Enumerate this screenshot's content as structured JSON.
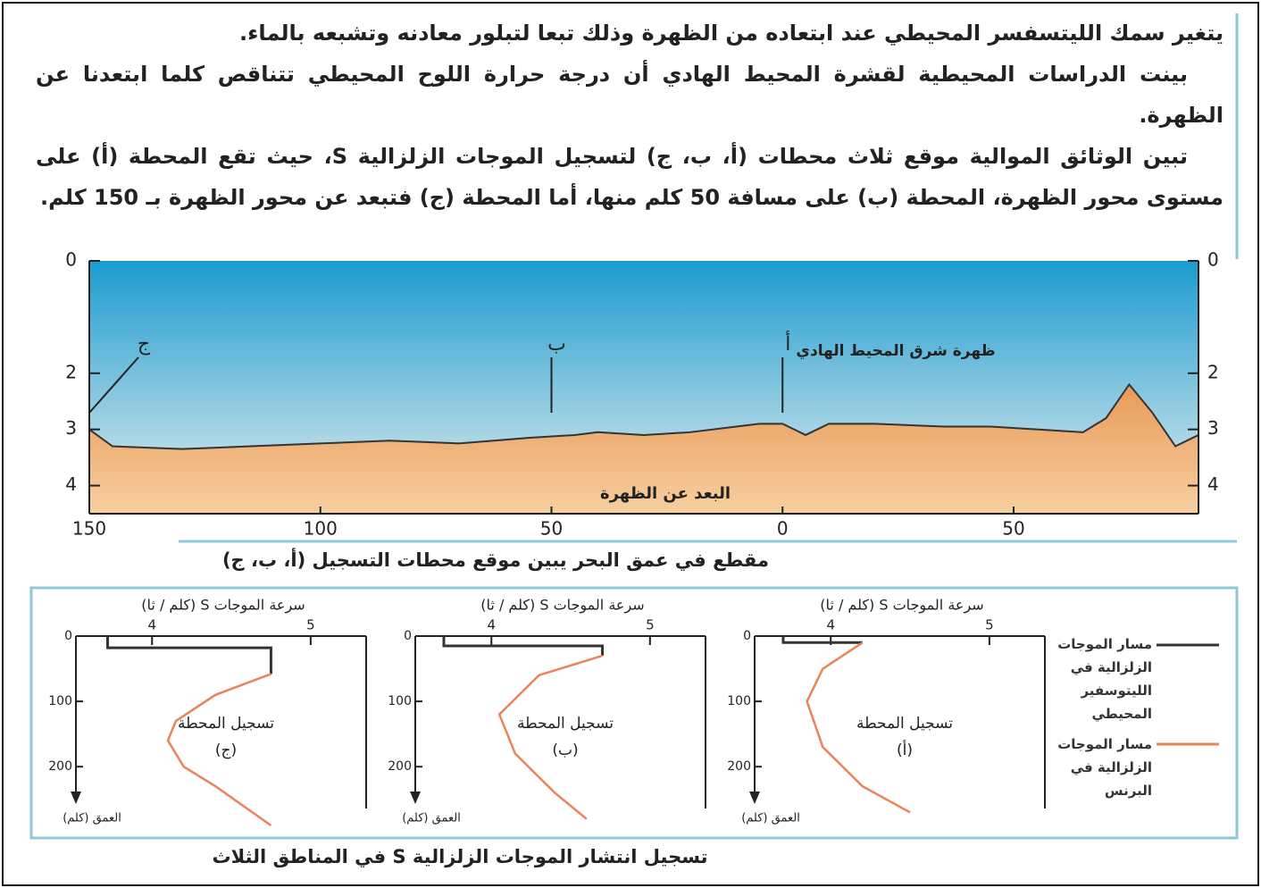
{
  "text": {
    "paragraphs": [
      "يتغير سمك الليتسفسر المحيطي عند ابتعاده من الظهرة وذلك تبعا لتبلور معادنه وتشبعه بالماء.",
      "بينت الدراسات المحيطية لقشرة المحيط الهادي أن درجة حرارة اللوح المحيطي تتناقص كلما ابتعدنا عن الظهرة.",
      "تبين الوثائق الموالية موقع ثلاث محطات (أ، ب، ج) لتسجيل الموجات الزلزالية S، حيث تقع المحطة (أ) على مستوى محور الظهرة، المحطة (ب) على مسافة 50 كلم منها، أما المحطة (ج) فتبعد عن محور الظهرة بـ 150 كلم."
    ]
  },
  "section": {
    "xlim": [
      -150,
      90
    ],
    "ylim": [
      0,
      4.5
    ],
    "xticks": [
      {
        "value": -150,
        "label": "150"
      },
      {
        "value": -100,
        "label": "100"
      },
      {
        "value": -50,
        "label": "50"
      },
      0,
      50
    ],
    "yticks": [
      0,
      2,
      3,
      4
    ],
    "y2ticks": [
      0,
      2,
      3,
      4
    ],
    "profile": {
      "x": [
        -150,
        -145,
        -130,
        -115,
        -100,
        -85,
        -70,
        -55,
        -45,
        -40,
        -30,
        -20,
        -10,
        -5,
        0,
        5,
        10,
        20,
        35,
        45,
        55,
        65,
        70,
        75,
        80,
        85,
        90
      ],
      "y": [
        3.0,
        3.3,
        3.35,
        3.3,
        3.25,
        3.2,
        3.25,
        3.15,
        3.1,
        3.05,
        3.1,
        3.05,
        2.95,
        2.9,
        2.9,
        3.1,
        2.9,
        2.9,
        2.95,
        2.95,
        3.0,
        3.05,
        2.8,
        2.2,
        2.7,
        3.3,
        3.1
      ]
    },
    "stations": [
      {
        "label": "ج",
        "x": -150
      },
      {
        "label": "ب",
        "x": -50
      },
      {
        "label": "أ",
        "x": 0
      }
    ],
    "ridge_label": "ظهرة شرق المحيط الهادي",
    "x_label": "البعد عن الظهرة",
    "caption": "مقطع في عمق البحر يبين موقع محطات التسجيل (أ، ب، ج)"
  },
  "panels": {
    "x_label": "سرعة الموجات S (كلم / ثا)",
    "y_label": "العمق (كلم)",
    "xlim": [
      3.52,
      5.35
    ],
    "ylim": [
      0,
      290
    ],
    "xticks": [
      4,
      5
    ],
    "yticks": [
      0,
      100,
      200
    ],
    "items": [
      {
        "label": "تسجيل المحطة",
        "station": "(ج)",
        "lithosphere": {
          "x": [
            3.72,
            3.72,
            4.75,
            4.75
          ],
          "y": [
            0,
            18,
            18,
            58
          ]
        },
        "mantle": {
          "x": [
            4.75,
            4.4,
            4.15,
            4.1,
            4.2,
            4.4,
            4.75
          ],
          "y": [
            58,
            90,
            130,
            160,
            200,
            230,
            290
          ]
        }
      },
      {
        "label": "تسجيل المحطة",
        "station": "(ب)",
        "lithosphere": {
          "x": [
            3.7,
            3.7,
            4.7,
            4.7
          ],
          "y": [
            0,
            15,
            15,
            30
          ]
        },
        "mantle": {
          "x": [
            4.7,
            4.3,
            4.05,
            4.15,
            4.4,
            4.6
          ],
          "y": [
            30,
            60,
            120,
            180,
            240,
            280
          ]
        }
      },
      {
        "label": "تسجيل المحطة",
        "station": "(أ)",
        "lithosphere": {
          "x": [
            3.7,
            3.7,
            4.2
          ],
          "y": [
            0,
            10,
            10
          ]
        },
        "mantle": {
          "x": [
            4.2,
            3.95,
            3.85,
            3.95,
            4.2,
            4.5
          ],
          "y": [
            10,
            50,
            100,
            170,
            230,
            270
          ]
        }
      }
    ]
  },
  "legend": [
    {
      "label": "مسار الموجات الزلزالية في الليتوسفير المحيطي",
      "color": "#333333"
    },
    {
      "label": "مسار الموجات الزلزالية في البرنس",
      "color": "#e8845a"
    }
  ],
  "caption": "تسجيل انتشار الموجات الزلزالية S في المناطق الثلاث"
}
